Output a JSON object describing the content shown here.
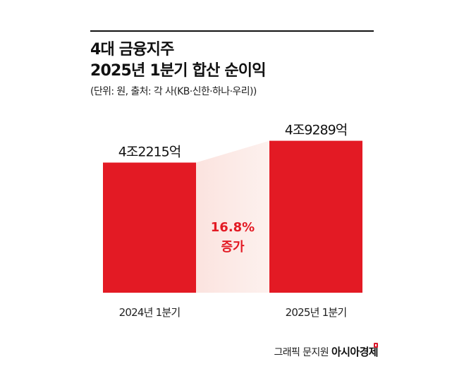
{
  "header": {
    "title_line1": "4대 금융지주",
    "title_line2": "2025년 1분기 합산 순이익",
    "subtitle": "(단위: 원, 출처: 각 사(KB·신한·하나·우리))"
  },
  "chart_data": {
    "type": "bar",
    "categories": [
      "2024년 1분기",
      "2025년 1분기"
    ],
    "values": [
      42215,
      49289
    ],
    "value_labels": [
      "4조2215억",
      "4조9289억"
    ],
    "unit": "억 원",
    "ylim": [
      0,
      54000
    ],
    "grid": false,
    "annotation": {
      "percent": "16.8%",
      "text": "증가"
    },
    "colors": {
      "bar": "#e31a24",
      "band_start": "#fbe3df",
      "band_end": "#fdf1ee",
      "annotation": "#e31a24"
    }
  },
  "footer": {
    "credit": "그래픽 문지원",
    "brand": "아시아경제"
  }
}
